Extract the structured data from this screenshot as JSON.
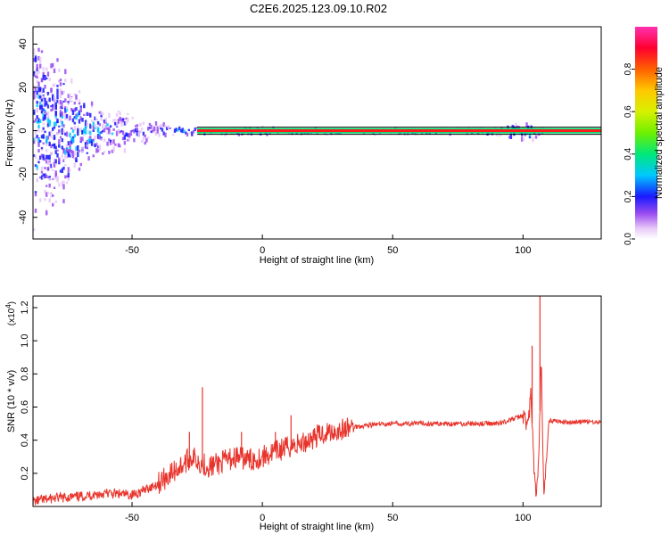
{
  "page_title": "C2E6.2025.123.09.10.R02",
  "chart_data": [
    {
      "type": "heatmap",
      "title": "C2E6.2025.123.09.10.R02",
      "xlabel": "Height of straight line (km)",
      "ylabel": "Frequency (Hz)",
      "xlim": [
        -88,
        130
      ],
      "ylim": [
        -50,
        48
      ],
      "xticks": [
        -50,
        0,
        50,
        100
      ],
      "yticks": [
        -40,
        -20,
        0,
        20,
        40
      ],
      "xtick_labels": [
        "-50",
        "0",
        "50",
        "100"
      ],
      "ytick_labels": [
        "-40",
        "-20",
        "0",
        "20",
        "40"
      ],
      "colorbar": {
        "label": "Normalized spectral amplitude",
        "range": [
          0,
          1
        ],
        "ticks": [
          0,
          0.2,
          0.4,
          0.6,
          0.8
        ],
        "tick_labels": [
          "0.0",
          "0.2",
          "0.4",
          "0.6",
          "0.8"
        ]
      },
      "carrier_line": {
        "frequency": 0,
        "x_range": [
          -25,
          130
        ]
      },
      "noise_profile": [
        {
          "x": -88,
          "spread": 48,
          "amplitude": 0.35
        },
        {
          "x": -80,
          "spread": 40,
          "amplitude": 0.3
        },
        {
          "x": -70,
          "spread": 20,
          "amplitude": 0.35
        },
        {
          "x": -60,
          "spread": 12,
          "amplitude": 0.3
        },
        {
          "x": -50,
          "spread": 8,
          "amplitude": 0.25
        },
        {
          "x": -40,
          "spread": 4,
          "amplitude": 0.25
        },
        {
          "x": -30,
          "spread": 3,
          "amplitude": 0.3
        },
        {
          "x": -20,
          "spread": 1,
          "amplitude": 0.5
        },
        {
          "x": -10,
          "spread": 2,
          "amplitude": 0.4
        },
        {
          "x": 0,
          "spread": 2,
          "amplitude": 0.35
        },
        {
          "x": 10,
          "spread": 1,
          "amplitude": 0.3
        },
        {
          "x": 80,
          "spread": 1,
          "amplitude": 0.3
        },
        {
          "x": 90,
          "spread": 2,
          "amplitude": 0.35
        },
        {
          "x": 100,
          "spread": 6,
          "amplitude": 0.4
        },
        {
          "x": 106,
          "spread": 3,
          "amplitude": 0.3
        },
        {
          "x": 110,
          "spread": 0,
          "amplitude": 0
        }
      ]
    },
    {
      "type": "line",
      "xlabel": "Height of straight line (km)",
      "ylabel": "SNR (10 * v/v)",
      "y_multiplier_label": "(x10",
      "y_multiplier_exp": "4",
      "y_multiplier_close": ")",
      "xlim": [
        -88,
        130
      ],
      "ylim": [
        0,
        1.27
      ],
      "xticks": [
        -50,
        0,
        50,
        100
      ],
      "yticks": [
        0.2,
        0.4,
        0.6,
        0.8,
        1.0,
        1.2
      ],
      "xtick_labels": [
        "-50",
        "0",
        "50",
        "100"
      ],
      "ytick_labels": [
        "0.2",
        "0.4",
        "0.6",
        "0.8",
        "1.0",
        "1.2"
      ],
      "series": [
        {
          "color": "#e8342c",
          "x": [
            -88,
            -80,
            -70,
            -60,
            -50,
            -45,
            -40,
            -35,
            -30,
            -27,
            -25,
            -22,
            -20,
            -15,
            -10,
            -5,
            0,
            5,
            10,
            15,
            20,
            25,
            30,
            35,
            40,
            50,
            60,
            70,
            80,
            90,
            95,
            100,
            102,
            103,
            104,
            105,
            106,
            107,
            108,
            110,
            115,
            120,
            130
          ],
          "y": [
            0.03,
            0.05,
            0.06,
            0.08,
            0.07,
            0.1,
            0.14,
            0.2,
            0.26,
            0.3,
            0.28,
            0.25,
            0.24,
            0.27,
            0.3,
            0.28,
            0.3,
            0.33,
            0.36,
            0.38,
            0.42,
            0.45,
            0.46,
            0.48,
            0.49,
            0.5,
            0.5,
            0.5,
            0.5,
            0.5,
            0.52,
            0.55,
            0.48,
            0.7,
            0.3,
            0.04,
            0.25,
            0.9,
            0.04,
            0.52,
            0.51,
            0.51,
            0.51
          ]
        }
      ],
      "spikes": [
        {
          "x": -28,
          "y": 0.45
        },
        {
          "x": -23,
          "y": 0.72
        },
        {
          "x": -8,
          "y": 0.45
        },
        {
          "x": 5,
          "y": 0.45
        },
        {
          "x": 11,
          "y": 0.55
        },
        {
          "x": 106.5,
          "y": 1.27
        },
        {
          "x": 103.5,
          "y": 0.97
        }
      ]
    }
  ]
}
